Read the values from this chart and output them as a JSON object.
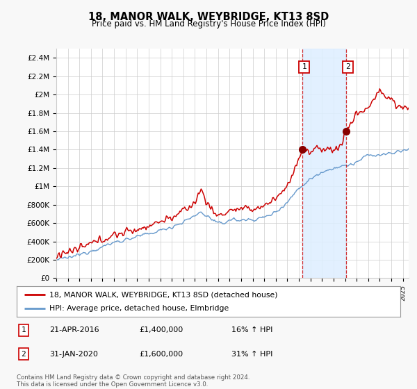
{
  "title": "18, MANOR WALK, WEYBRIDGE, KT13 8SD",
  "subtitle": "Price paid vs. HM Land Registry's House Price Index (HPI)",
  "ylabel_ticks": [
    "£0",
    "£200K",
    "£400K",
    "£600K",
    "£800K",
    "£1M",
    "£1.2M",
    "£1.4M",
    "£1.6M",
    "£1.8M",
    "£2M",
    "£2.2M",
    "£2.4M"
  ],
  "ylabel_values": [
    0,
    200000,
    400000,
    600000,
    800000,
    1000000,
    1200000,
    1400000,
    1600000,
    1800000,
    2000000,
    2200000,
    2400000
  ],
  "ylim": [
    0,
    2500000
  ],
  "xlim_start": 1995.0,
  "xlim_end": 2025.5,
  "transaction1_x": 2016.31,
  "transaction1_y": 1400000,
  "transaction1_label": "1",
  "transaction1_date": "21-APR-2016",
  "transaction1_price": "£1,400,000",
  "transaction1_hpi": "16% ↑ HPI",
  "transaction2_x": 2020.08,
  "transaction2_y": 1600000,
  "transaction2_label": "2",
  "transaction2_date": "31-JAN-2020",
  "transaction2_price": "£1,600,000",
  "transaction2_hpi": "31% ↑ HPI",
  "legend_line1": "18, MANOR WALK, WEYBRIDGE, KT13 8SD (detached house)",
  "legend_line2": "HPI: Average price, detached house, Elmbridge",
  "footnote": "Contains HM Land Registry data © Crown copyright and database right 2024.\nThis data is licensed under the Open Government Licence v3.0.",
  "line_color_red": "#cc0000",
  "line_color_blue": "#6699cc",
  "shade_color": "#ddeeff",
  "grid_color": "#cccccc",
  "background_color": "#f8f8f8",
  "plot_bg_color": "#ffffff"
}
